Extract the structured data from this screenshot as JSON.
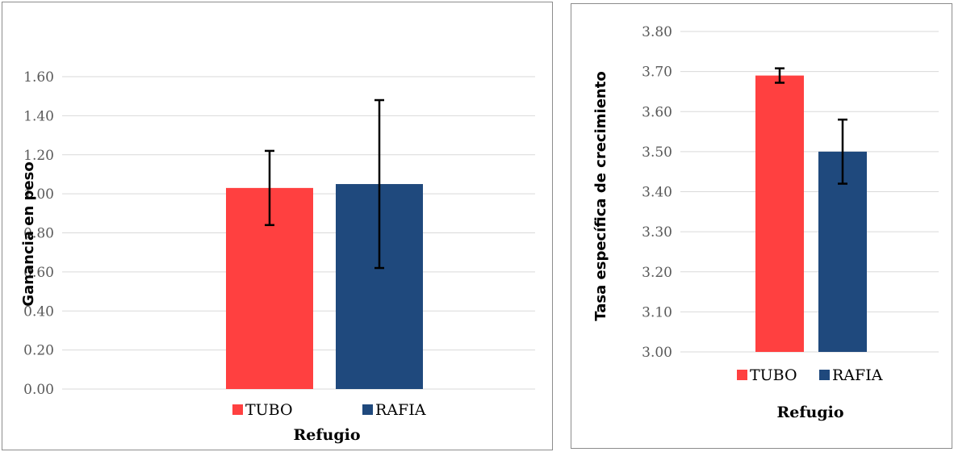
{
  "colors": {
    "TUBO": "#ff4040",
    "RAFIA": "#1f497d"
  },
  "chart_data": [
    {
      "type": "bar",
      "categories": [
        "TUBO",
        "RAFIA"
      ],
      "series": [
        {
          "name": "TUBO",
          "value": 1.03,
          "error": 0.19
        },
        {
          "name": "RAFIA",
          "value": 1.05,
          "error": 0.43
        }
      ],
      "xlabel": "Refugio",
      "ylabel": "Ganancia en peso",
      "ylim": [
        0,
        1.6
      ],
      "yticks": [
        "0.00",
        "0.20",
        "0.40",
        "0.60",
        "0.80",
        "1.00",
        "1.20",
        "1.40",
        "1.60"
      ],
      "legend": "bottom",
      "grid": true
    },
    {
      "type": "bar",
      "categories": [
        "TUBO",
        "RAFIA"
      ],
      "series": [
        {
          "name": "TUBO",
          "value": 3.69,
          "error": 0.018
        },
        {
          "name": "RAFIA",
          "value": 3.5,
          "error": 0.08
        }
      ],
      "xlabel": "Refugio",
      "ylabel": "Tasa específica de crecimiento",
      "ylim": [
        3.0,
        3.8
      ],
      "yticks": [
        "3.00",
        "3.10",
        "3.20",
        "3.30",
        "3.40",
        "3.50",
        "3.60",
        "3.70",
        "3.80"
      ],
      "legend": "bottom",
      "grid": true
    }
  ]
}
